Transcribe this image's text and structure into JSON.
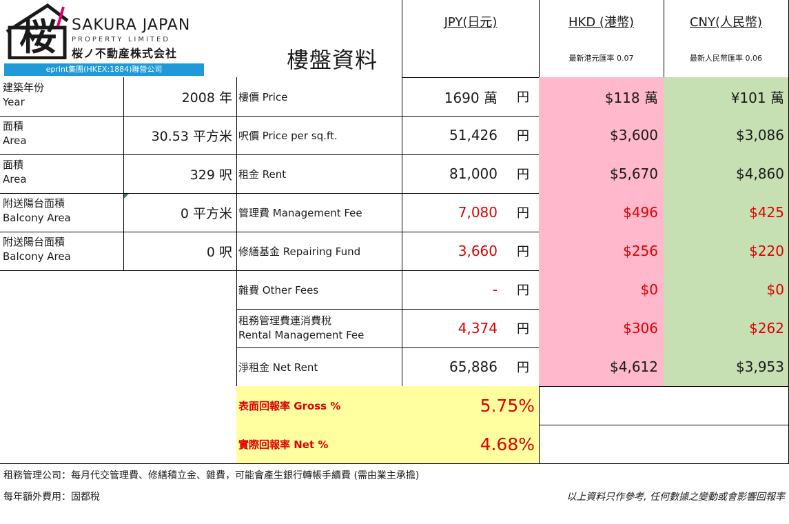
{
  "header": {
    "logo": {
      "kanji": "桜",
      "line1": "SAKURA JAPAN",
      "line2": "PROPERTY LIMITED",
      "line3": "桜ノ不動産株式会社",
      "band": "eprint集團(HKEX:1884)聯營公司",
      "color_band": "#1f9ad6"
    },
    "title": "樓盤資料",
    "jpy": {
      "title": "JPY(日元)"
    },
    "hkd": {
      "title": "HKD (港幣)",
      "rate": "最新港元匯率 0.07"
    },
    "cny": {
      "title": "CNY(人民幣)",
      "rate": "最新人民幣匯率 0.06"
    }
  },
  "colors": {
    "hkd_bg": "#ffb8cc",
    "cny_bg": "#c6e0b4",
    "yield_bg": "#ffff9f",
    "red": "#e00000"
  },
  "left": [
    {
      "zh": "建築年份",
      "en": "Year",
      "value": "2008 年"
    },
    {
      "zh": "面積",
      "en": "Area",
      "value": "30.53 平方米"
    },
    {
      "zh": "面積",
      "en": "Area",
      "value": "329 呎"
    },
    {
      "zh": "附送陽台面積",
      "en": "Balcony Area",
      "value": "0 平方米"
    },
    {
      "zh": "附送陽台面積",
      "en": "Balcony Area",
      "value": "0 呎"
    }
  ],
  "rows": [
    {
      "label": "樓價 Price",
      "jpy": "1690 萬",
      "unit": "円",
      "hkd": "$118 萬",
      "cny": "¥101 萬"
    },
    {
      "label": "呎價 Price per sq.ft.",
      "jpy": "51,426",
      "unit": "円",
      "hkd": "$3,600",
      "cny": "$3,086"
    },
    {
      "label": "租金 Rent",
      "jpy": "81,000",
      "unit": "円",
      "hkd": "$5,670",
      "cny": "$4,860"
    },
    {
      "label": "管理費 Management Fee",
      "jpy": "7,080",
      "unit": "円",
      "hkd": "$496",
      "cny": "$425"
    },
    {
      "label": "修繕基金 Repairing Fund",
      "jpy": "3,660",
      "unit": "円",
      "hkd": "$256",
      "cny": "$220"
    },
    {
      "label": "雜費 Other Fees",
      "jpy": "-",
      "unit": "円",
      "hkd": "$0",
      "cny": "$0"
    },
    {
      "label": "租務管理費連消費稅",
      "label2": "Rental Management Fee",
      "jpy": "4,374",
      "unit": "円",
      "hkd": "$306",
      "cny": "$262"
    },
    {
      "label": "淨租金 Net Rent",
      "jpy": "65,886",
      "unit": "円",
      "hkd": "$4,612",
      "cny": "$3,953"
    }
  ],
  "yields": [
    {
      "label": "表面回報率 Gross %",
      "value": "5.75%",
      "percent": 5.75
    },
    {
      "label": "實際回報率 Net %",
      "value": "4.68%",
      "percent": 4.68
    }
  ],
  "footer": {
    "note1": "租務管理公司：每月代交管理費、修繕積立金、雜費，可能會產生銀行轉帳手續費 (需由業主承擔)",
    "note2": "每年額外費用：固都稅",
    "disclaimer": "以上資料只作參考, 任何數據之變動或會影響回報率"
  }
}
